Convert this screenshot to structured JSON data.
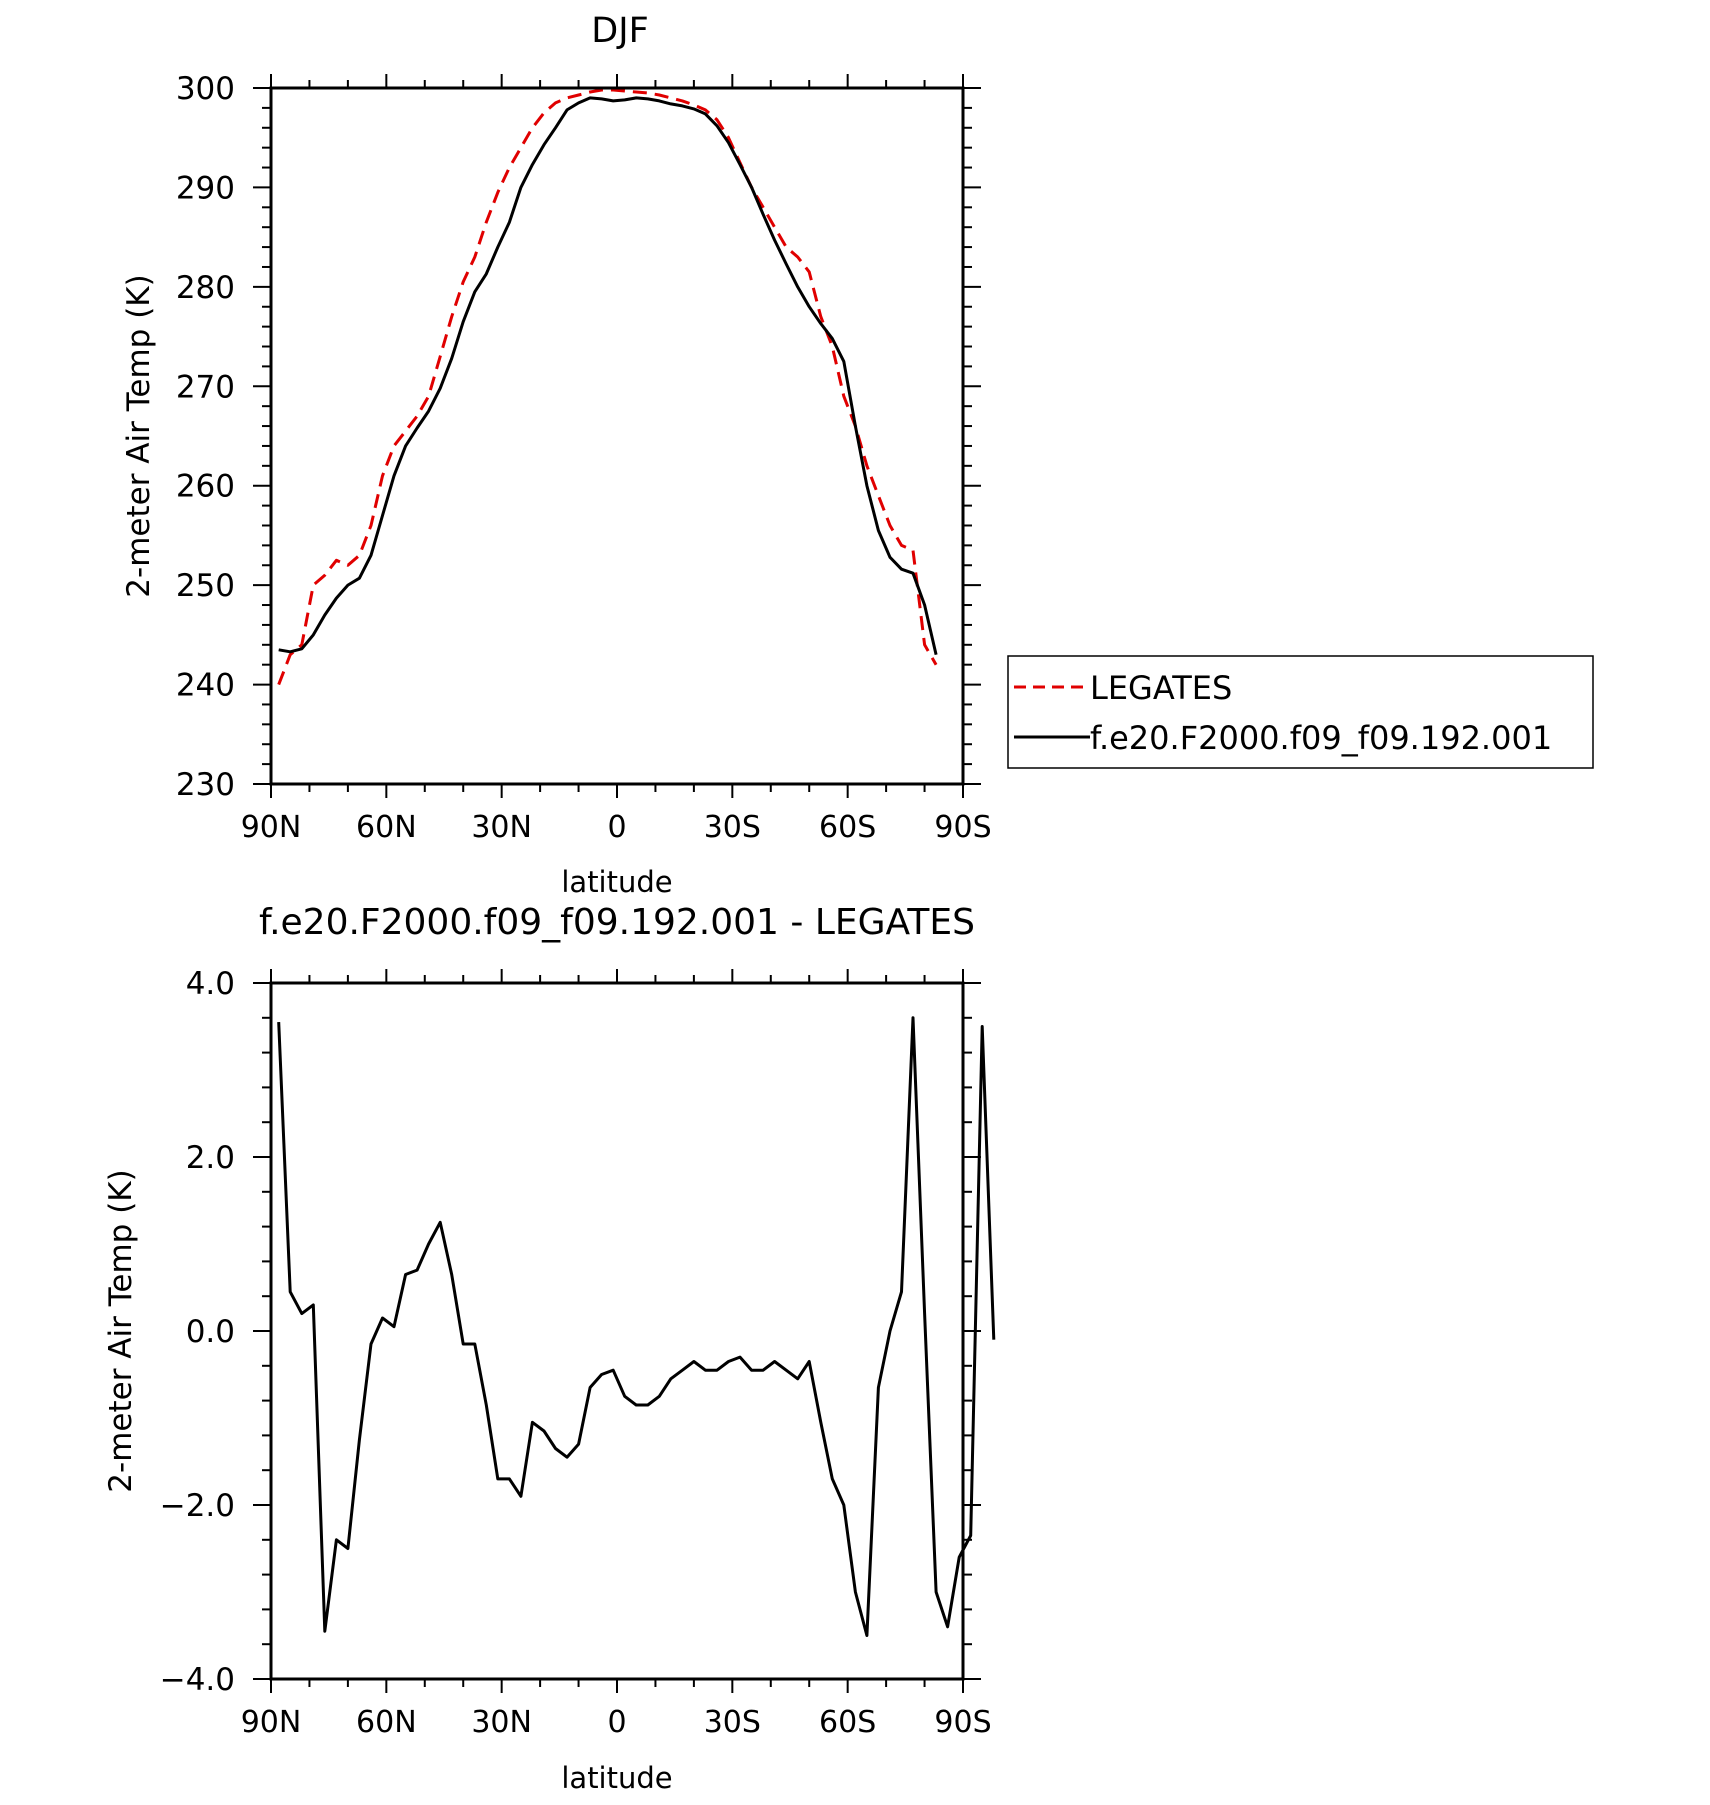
{
  "chart_data": [
    {
      "type": "line",
      "title": "DJF",
      "xlabel": "latitude",
      "ylabel": "2-meter Air Temp (K)",
      "xlim": [
        90,
        -90
      ],
      "ylim": [
        230,
        300
      ],
      "xticks": [
        90,
        60,
        30,
        0,
        -30,
        -60,
        -90
      ],
      "xtick_labels": [
        "90N",
        "60N",
        "30N",
        "0",
        "30S",
        "60S",
        "90S"
      ],
      "yticks": [
        230,
        240,
        250,
        260,
        270,
        280,
        290,
        300
      ],
      "ytick_labels": [
        "230",
        "240",
        "250",
        "260",
        "270",
        "280",
        "290",
        "300"
      ],
      "grid": false,
      "legend_position": "right",
      "series": [
        {
          "name": "LEGATES",
          "color": "#e00000",
          "dash": "dashed",
          "points": [
            [
              88,
              240
            ],
            [
              85,
              243
            ],
            [
              82,
              244
            ],
            [
              79,
              250
            ],
            [
              76,
              251
            ],
            [
              73,
              252.5
            ],
            [
              70,
              252
            ],
            [
              67,
              253
            ],
            [
              64,
              256
            ],
            [
              61,
              261
            ],
            [
              58,
              264
            ],
            [
              55,
              265.5
            ],
            [
              52,
              267
            ],
            [
              49,
              269
            ],
            [
              46,
              273
            ],
            [
              43,
              277
            ],
            [
              40,
              280.5
            ],
            [
              37,
              283
            ],
            [
              34,
              286.5
            ],
            [
              31,
              289.5
            ],
            [
              28,
              292
            ],
            [
              25,
              294
            ],
            [
              22,
              296
            ],
            [
              19,
              297.5
            ],
            [
              16,
              298.5
            ],
            [
              13,
              299
            ],
            [
              10,
              299.3
            ],
            [
              7,
              299.6
            ],
            [
              4,
              299.8
            ],
            [
              1,
              299.8
            ],
            [
              -2,
              299.7
            ],
            [
              -5,
              299.6
            ],
            [
              -8,
              299.5
            ],
            [
              -11,
              299.3
            ],
            [
              -14,
              299
            ],
            [
              -17,
              298.7
            ],
            [
              -20,
              298.3
            ],
            [
              -23,
              297.8
            ],
            [
              -26,
              296.8
            ],
            [
              -29,
              295
            ],
            [
              -32,
              292.5
            ],
            [
              -35,
              290
            ],
            [
              -38,
              288
            ],
            [
              -41,
              286
            ],
            [
              -44,
              284
            ],
            [
              -47,
              283
            ],
            [
              -50,
              281.5
            ],
            [
              -53,
              277
            ],
            [
              -56,
              274
            ],
            [
              -59,
              269
            ],
            [
              -62,
              266
            ],
            [
              -65,
              262
            ],
            [
              -68,
              259
            ],
            [
              -71,
              256
            ],
            [
              -74,
              254
            ],
            [
              -77,
              253.5
            ],
            [
              -80,
              244
            ],
            [
              -83,
              242
            ]
          ]
        },
        {
          "name": "f.e20.F2000.f09_f09.192.001",
          "color": "#000000",
          "dash": "solid",
          "points": [
            [
              88,
              243.5
            ],
            [
              85,
              243.3
            ],
            [
              82,
              243.6
            ],
            [
              79,
              245
            ],
            [
              76,
              247
            ],
            [
              73,
              248.7
            ],
            [
              70,
              250
            ],
            [
              67,
              250.7
            ],
            [
              64,
              253
            ],
            [
              61,
              257
            ],
            [
              58,
              261
            ],
            [
              55,
              264
            ],
            [
              52,
              265.8
            ],
            [
              49,
              267.5
            ],
            [
              46,
              269.8
            ],
            [
              43,
              272.8
            ],
            [
              40,
              276.5
            ],
            [
              37,
              279.5
            ],
            [
              34,
              281.3
            ],
            [
              31,
              284
            ],
            [
              28,
              286.5
            ],
            [
              25,
              290
            ],
            [
              22,
              292.3
            ],
            [
              19,
              294.3
            ],
            [
              16,
              296
            ],
            [
              13,
              297.8
            ],
            [
              10,
              298.5
            ],
            [
              7,
              299
            ],
            [
              4,
              298.9
            ],
            [
              1,
              298.7
            ],
            [
              -2,
              298.8
            ],
            [
              -5,
              299
            ],
            [
              -8,
              298.9
            ],
            [
              -11,
              298.7
            ],
            [
              -14,
              298.4
            ],
            [
              -17,
              298.2
            ],
            [
              -20,
              297.9
            ],
            [
              -23,
              297.4
            ],
            [
              -26,
              296.2
            ],
            [
              -29,
              294.5
            ],
            [
              -32,
              292.3
            ],
            [
              -35,
              290
            ],
            [
              -38,
              287.3
            ],
            [
              -41,
              284.7
            ],
            [
              -44,
              282.3
            ],
            [
              -47,
              280
            ],
            [
              -50,
              278
            ],
            [
              -53,
              276.3
            ],
            [
              -56,
              274.8
            ],
            [
              -59,
              272.5
            ],
            [
              -62,
              266
            ],
            [
              -65,
              260
            ],
            [
              -68,
              255.5
            ],
            [
              -71,
              252.8
            ],
            [
              -74,
              251.6
            ],
            [
              -77,
              251.2
            ],
            [
              -80,
              248
            ],
            [
              -83,
              243
            ]
          ]
        }
      ]
    },
    {
      "type": "line",
      "title": "f.e20.F2000.f09_f09.192.001 - LEGATES",
      "xlabel": "latitude",
      "ylabel": "2-meter Air Temp (K)",
      "xlim": [
        90,
        -90
      ],
      "ylim": [
        -4,
        4
      ],
      "xticks": [
        90,
        60,
        30,
        0,
        -30,
        -60,
        -90
      ],
      "xtick_labels": [
        "90N",
        "60N",
        "30N",
        "0",
        "30S",
        "60S",
        "90S"
      ],
      "yticks": [
        -4,
        -2,
        0,
        2,
        4
      ],
      "ytick_labels": [
        "−4.0",
        "−2.0",
        "0.0",
        "2.0",
        "4.0"
      ],
      "grid": false,
      "series": [
        {
          "color": "#000000",
          "dash": "solid",
          "points": [
            [
              88,
              3.55
            ],
            [
              85,
              0.45
            ],
            [
              82,
              0.2
            ],
            [
              79,
              0.3
            ],
            [
              76,
              -3.45
            ],
            [
              73,
              -2.4
            ],
            [
              70,
              -2.5
            ],
            [
              67,
              -1.25
            ],
            [
              64,
              -0.15
            ],
            [
              61,
              0.15
            ],
            [
              58,
              0.05
            ],
            [
              55,
              0.65
            ],
            [
              52,
              0.7
            ],
            [
              49,
              1.0
            ],
            [
              46,
              1.25
            ],
            [
              43,
              0.65
            ],
            [
              40,
              -0.15
            ],
            [
              37,
              -0.15
            ],
            [
              34,
              -0.85
            ],
            [
              31,
              -1.7
            ],
            [
              28,
              -1.7
            ],
            [
              25,
              -1.9
            ],
            [
              22,
              -1.05
            ],
            [
              19,
              -1.15
            ],
            [
              16,
              -1.35
            ],
            [
              13,
              -1.45
            ],
            [
              10,
              -1.3
            ],
            [
              7,
              -0.65
            ],
            [
              4,
              -0.5
            ],
            [
              1,
              -0.45
            ],
            [
              -2,
              -0.75
            ],
            [
              -5,
              -0.85
            ],
            [
              -8,
              -0.85
            ],
            [
              -11,
              -0.75
            ],
            [
              -14,
              -0.55
            ],
            [
              -17,
              -0.45
            ],
            [
              -20,
              -0.35
            ],
            [
              -23,
              -0.45
            ],
            [
              -26,
              -0.45
            ],
            [
              -29,
              -0.35
            ],
            [
              -32,
              -0.3
            ],
            [
              -35,
              -0.45
            ],
            [
              -38,
              -0.45
            ],
            [
              -41,
              -0.35
            ],
            [
              -44,
              -0.45
            ],
            [
              -47,
              -0.55
            ],
            [
              -50,
              -0.35
            ],
            [
              -53,
              -1.05
            ],
            [
              -56,
              -1.7
            ],
            [
              -59,
              -2.0
            ],
            [
              -62,
              -3.0
            ],
            [
              -65,
              -3.5
            ],
            [
              -68,
              -0.65
            ],
            [
              -71,
              0.0
            ],
            [
              -74,
              0.45
            ],
            [
              -77,
              3.6
            ],
            [
              -80,
              0.2
            ],
            [
              -83,
              -3.0
            ],
            [
              -86,
              -3.4
            ],
            [
              -89,
              -2.6
            ],
            [
              -92,
              -2.35
            ],
            [
              -95,
              3.5
            ],
            [
              -98,
              -0.1
            ]
          ]
        }
      ]
    }
  ]
}
